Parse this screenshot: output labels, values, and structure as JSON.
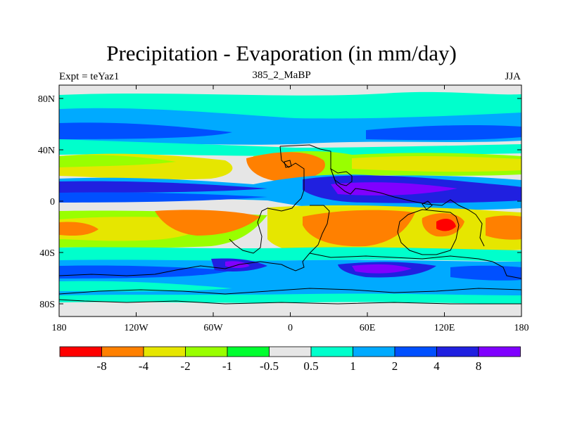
{
  "title": "Precipitation - Evaporation (in mm/day)",
  "subtitle_left": "Expt = teYaz1",
  "subtitle_center": "385_2_MaBP",
  "subtitle_right": "JJA",
  "y_ticks": [
    "80N",
    "40N",
    "0",
    "40S",
    "80S"
  ],
  "x_ticks": [
    "180",
    "120W",
    "60W",
    "0",
    "60E",
    "120E",
    "180"
  ],
  "colorbar": {
    "colors": [
      "#ff0000",
      "#ff8000",
      "#e6e600",
      "#99ff00",
      "#00ff30",
      "#e6e6e6",
      "#00ffcc",
      "#00aaff",
      "#0050ff",
      "#2020e0",
      "#8000ff"
    ],
    "labels": [
      "-8",
      "-4",
      "-2",
      "-1",
      "-0.5",
      "0.5",
      "1",
      "2",
      "4",
      "8"
    ]
  }
}
